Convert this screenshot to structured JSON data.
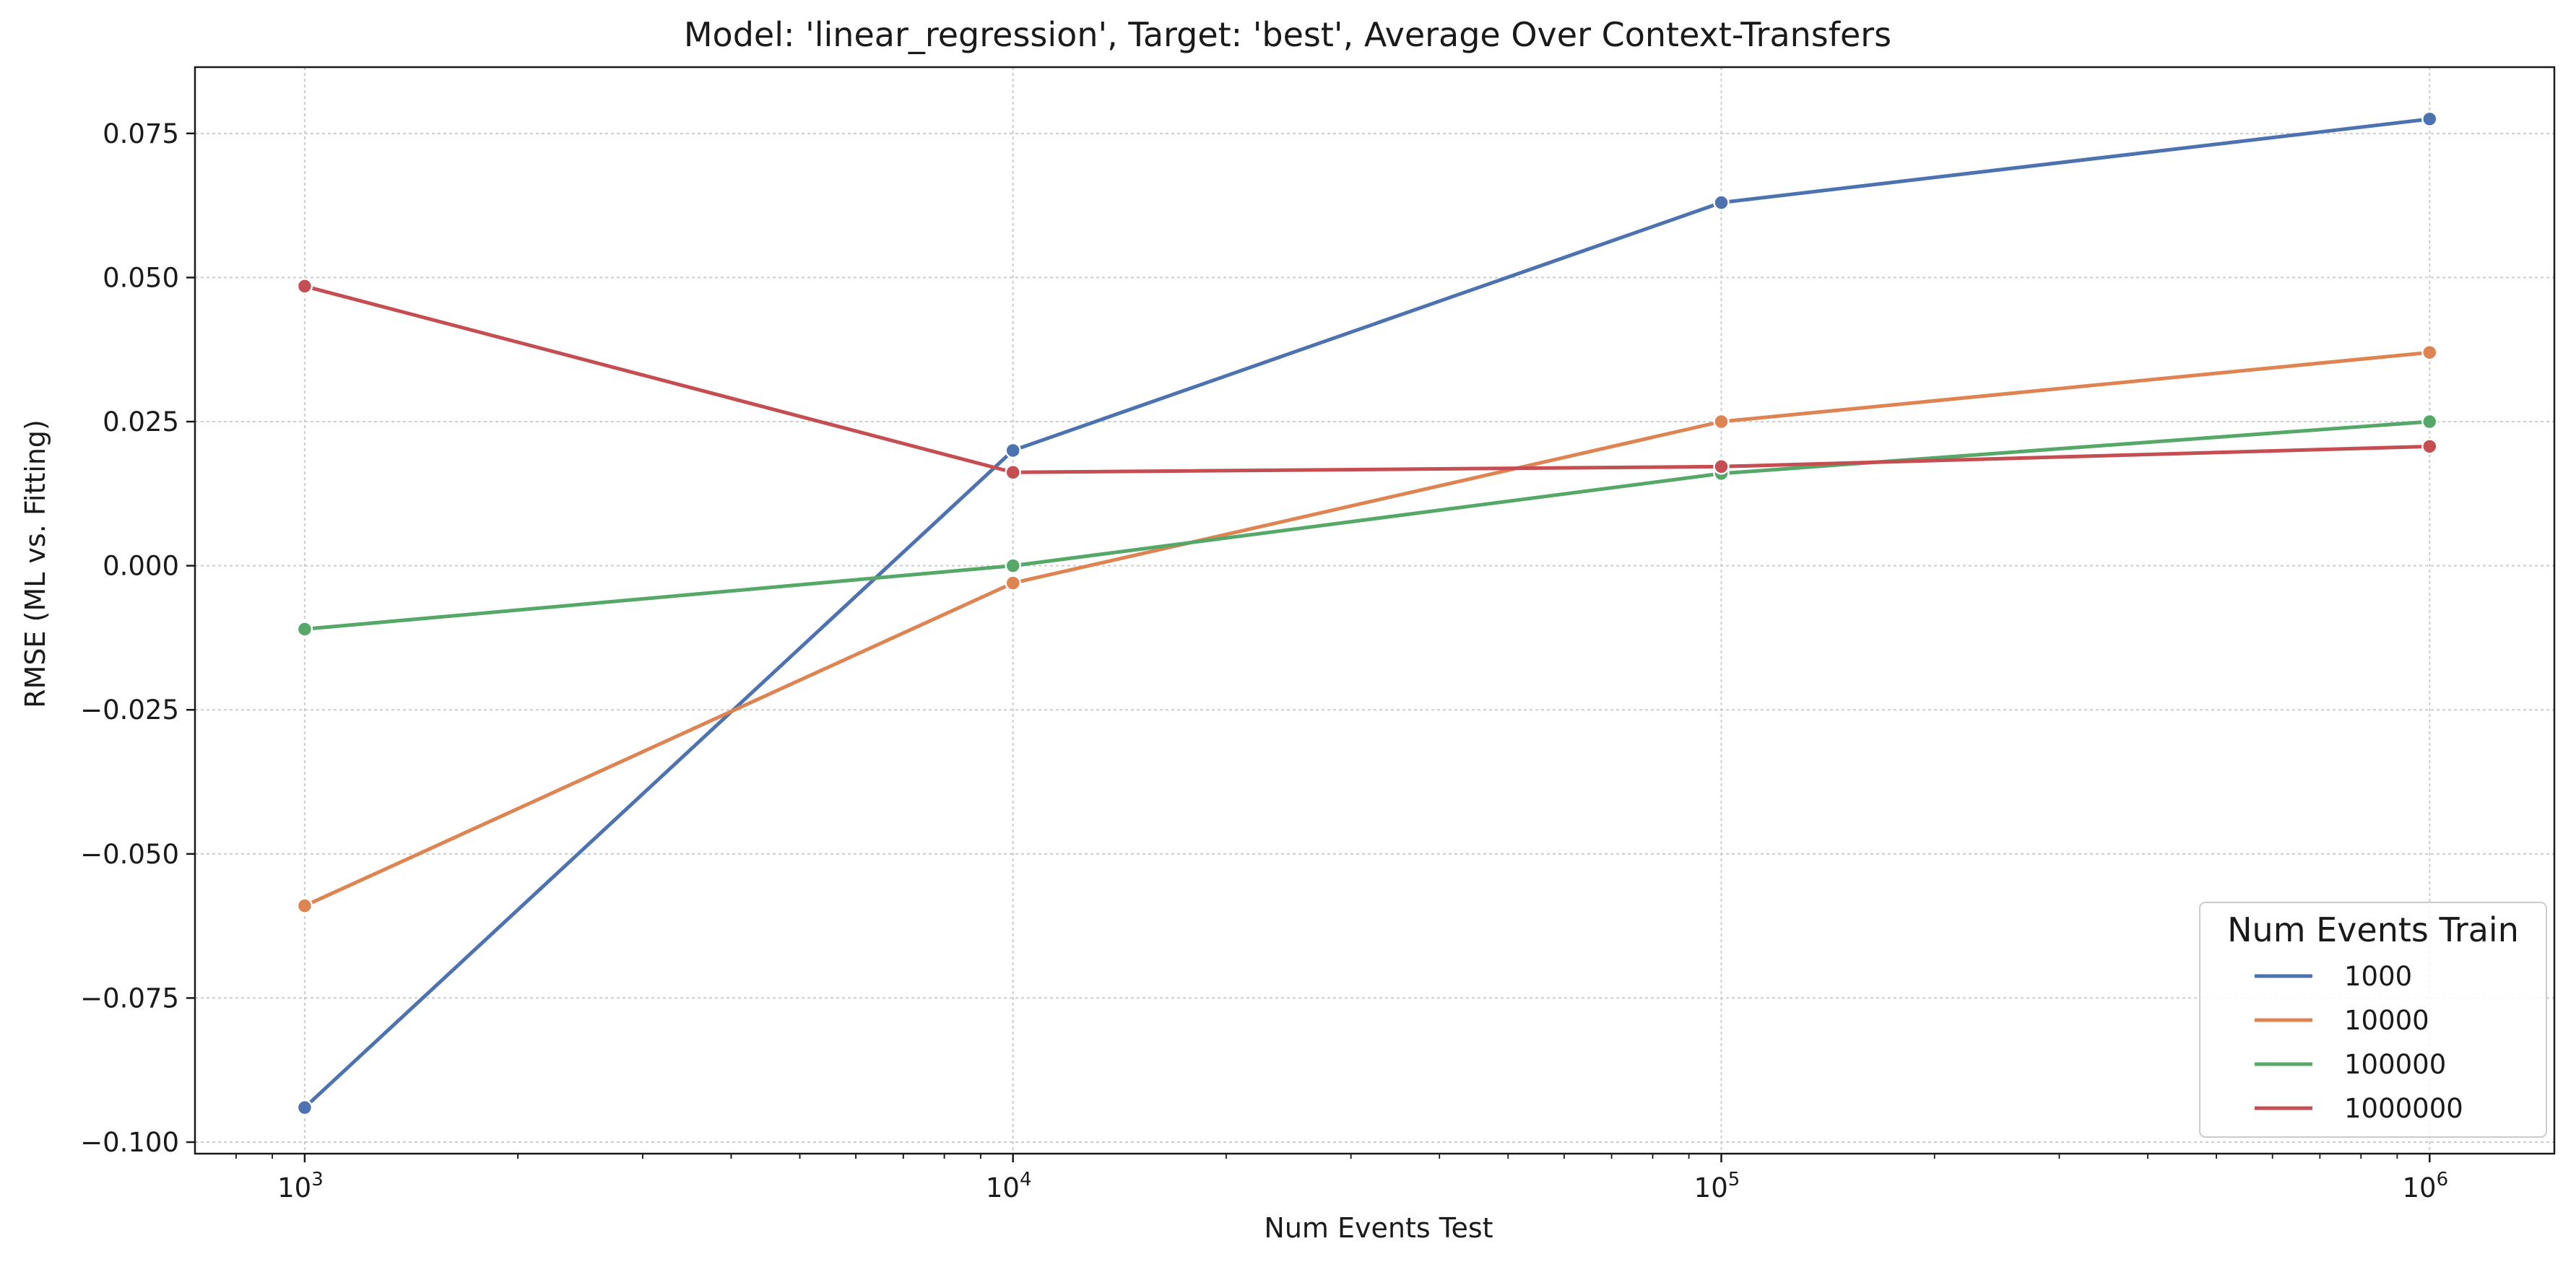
{
  "chart_data": {
    "type": "line",
    "title": "Model: 'linear_regression', Target: 'best', Average Over Context-Transfers",
    "xlabel": "Num Events Test",
    "ylabel": "RMSE (ML vs. Fitting)",
    "x_scale": "log",
    "x": [
      1000,
      10000,
      100000,
      1000000
    ],
    "x_tick_labels": [
      {
        "base": "10",
        "exp": "3"
      },
      {
        "base": "10",
        "exp": "4"
      },
      {
        "base": "10",
        "exp": "5"
      },
      {
        "base": "10",
        "exp": "6"
      }
    ],
    "xlim": [
      700,
      1500000
    ],
    "ylim": [
      -0.102,
      0.0865
    ],
    "y_ticks": [
      -0.1,
      -0.075,
      -0.05,
      -0.025,
      0.0,
      0.025,
      0.05,
      0.075
    ],
    "y_tick_labels": [
      "−0.100",
      "−0.075",
      "−0.050",
      "−0.025",
      "0.000",
      "0.025",
      "0.050",
      "0.075"
    ],
    "grid": true,
    "legend": {
      "title": "Num Events Train",
      "placement": "bottom-right"
    },
    "series": [
      {
        "name": "1000",
        "color": "#4c72b0",
        "values": [
          -0.094,
          0.02,
          0.063,
          0.0775
        ]
      },
      {
        "name": "10000",
        "color": "#dd8452",
        "values": [
          -0.059,
          -0.003,
          0.025,
          0.037
        ]
      },
      {
        "name": "100000",
        "color": "#55a868",
        "values": [
          -0.011,
          0.0,
          0.016,
          0.025
        ]
      },
      {
        "name": "1000000",
        "color": "#c44e52",
        "values": [
          0.0485,
          0.0162,
          0.0172,
          0.0207
        ]
      }
    ]
  }
}
